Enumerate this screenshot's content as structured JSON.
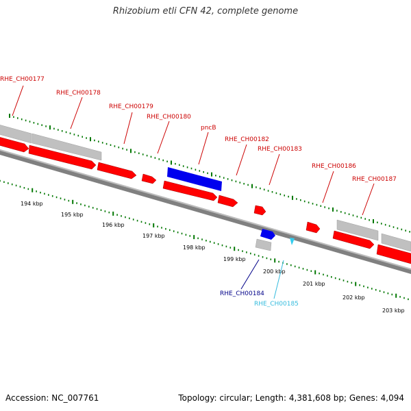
{
  "title": "Rhizobium etli CFN 42, complete genome",
  "footer": {
    "accession": "Accession: NC_007761",
    "summary": "Topology: circular; Length: 4,381,608 bp; Genes: 4,094"
  },
  "colors": {
    "forward_gene": "#ff0000",
    "reverse_gene": "#ff0000",
    "highlight_gene": "#0000ee",
    "pseudo_gene": "#c0c0c0",
    "trna_gene": "#33ccee",
    "backbone": "#808080",
    "ticks": "#007700",
    "gene_label": "#cc0000"
  },
  "scale": {
    "labels": [
      "194 kbp",
      "195 kbp",
      "196 kbp",
      "197 kbp",
      "198 kbp",
      "199 kbp",
      "200 kbp",
      "201 kbp",
      "202 kbp",
      "203 kbp"
    ]
  },
  "gene_labels": [
    {
      "text": "RHE_CH00177",
      "color": "#cc0000"
    },
    {
      "text": "RHE_CH00178",
      "color": "#cc0000"
    },
    {
      "text": "RHE_CH00179",
      "color": "#cc0000"
    },
    {
      "text": "RHE_CH00180",
      "color": "#cc0000"
    },
    {
      "text": "pncB",
      "color": "#cc0000"
    },
    {
      "text": "RHE_CH00182",
      "color": "#cc0000"
    },
    {
      "text": "RHE_CH00183",
      "color": "#cc0000"
    },
    {
      "text": "RHE_CH00186",
      "color": "#cc0000"
    },
    {
      "text": "RHE_CH00187",
      "color": "#cc0000"
    },
    {
      "text": "RHE_CH00184",
      "color": "#000088"
    },
    {
      "text": "RHE_CH00185",
      "color": "#33bbdd"
    }
  ]
}
